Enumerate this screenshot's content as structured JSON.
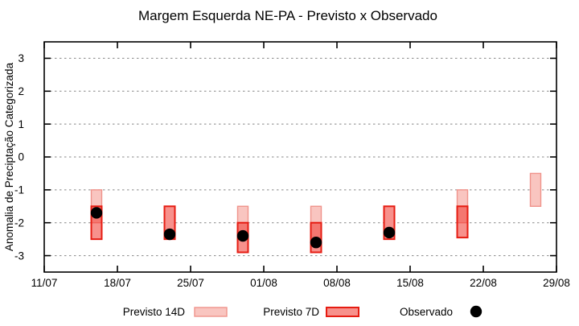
{
  "title": "Margem Esquerda NE-PA - Previsto x Observado",
  "chart_data": {
    "type": "range-bar+scatter",
    "title": "Margem Esquerda NE-PA - Previsto x Observado",
    "xlabel": "",
    "ylabel": "Anomalia de Preciptação Categorizada",
    "ylim": [
      -3.5,
      3.5
    ],
    "yticks": [
      3,
      2,
      1,
      0,
      -1,
      -2,
      -3
    ],
    "xticks": [
      "11/07",
      "18/07",
      "25/07",
      "01/08",
      "08/08",
      "15/08",
      "22/08",
      "29/08"
    ],
    "grid": "horizontal-dotted",
    "legend_position": "bottom-outside",
    "series": [
      {
        "id": "previsto-14d",
        "name": "Previsto 14D",
        "type": "range-bar",
        "style": "d14",
        "points": [
          {
            "date": "16/07",
            "high": -1.0,
            "low": -2.0
          },
          {
            "date": "30/07",
            "high": -1.5,
            "low": -2.5
          },
          {
            "date": "06/08",
            "high": -1.5,
            "low": -2.5
          },
          {
            "date": "20/08",
            "high": -1.0,
            "low": -2.0
          },
          {
            "date": "27/08",
            "high": -0.5,
            "low": -1.5
          }
        ]
      },
      {
        "id": "previsto-7d",
        "name": "Previsto 7D",
        "type": "range-bar",
        "style": "d7",
        "points": [
          {
            "date": "16/07",
            "high": -1.5,
            "low": -2.5
          },
          {
            "date": "23/07",
            "high": -1.5,
            "low": -2.5
          },
          {
            "date": "30/07",
            "high": -2.0,
            "low": -2.9
          },
          {
            "date": "06/08",
            "high": -2.0,
            "low": -2.9
          },
          {
            "date": "13/08",
            "high": -1.5,
            "low": -2.5
          },
          {
            "date": "20/08",
            "high": -1.5,
            "low": -2.45
          }
        ]
      },
      {
        "id": "observado",
        "name": "Observado",
        "type": "scatter",
        "style": "obs",
        "points": [
          {
            "date": "16/07",
            "value": -1.7
          },
          {
            "date": "23/07",
            "value": -2.35
          },
          {
            "date": "30/07",
            "value": -2.4
          },
          {
            "date": "06/08",
            "value": -2.6
          },
          {
            "date": "13/08",
            "value": -2.3
          }
        ]
      }
    ]
  },
  "colors": {
    "d14_fill": "rgba(238,97,85,0.37)",
    "d14_stroke": "#f0938b",
    "d7_fill": "rgba(240,55,45,0.55)",
    "d7_stroke": "#e61c12",
    "observed": "#000000",
    "grid": "#888888",
    "axis": "#000000"
  },
  "legend": {
    "items": [
      {
        "label": "Previsto 14D",
        "swatch": "d14"
      },
      {
        "label": "Previsto 7D",
        "swatch": "d7"
      },
      {
        "label": "Observado",
        "swatch": "obs"
      }
    ]
  }
}
